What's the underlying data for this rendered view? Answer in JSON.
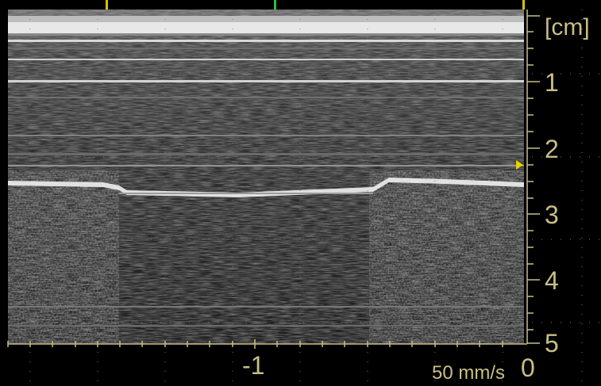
{
  "depth_axis": {
    "unit_label": "[cm]",
    "tick_labels": [
      "1",
      "2",
      "3",
      "4",
      "5"
    ]
  },
  "time_axis": {
    "tick_labels": [
      "-1",
      "0"
    ]
  },
  "sweep_speed_label": "50 mm/s",
  "colors": {
    "background": "#000000",
    "axis_label": "#c8bf86",
    "top_marker_yellow": "#d8c000",
    "top_marker_green": "#30c030",
    "focus_marker": "#e6d000"
  },
  "icons": {
    "focus_marker": "triangle-right"
  }
}
